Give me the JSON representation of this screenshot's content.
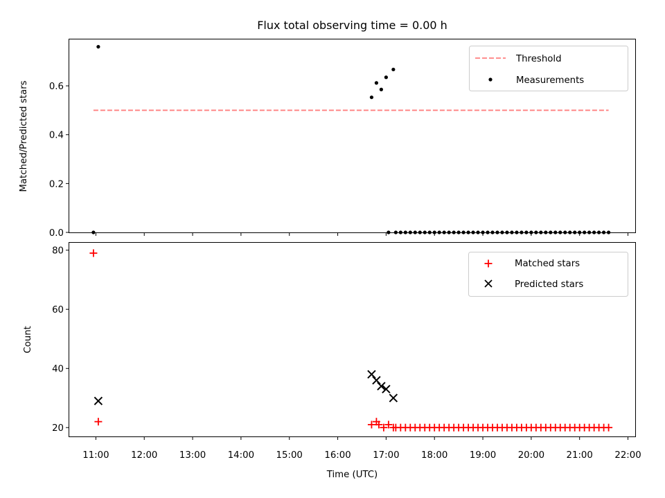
{
  "title": "Flux total observing time = 0.00 h",
  "chart_data": [
    {
      "type": "scatter",
      "ylabel": "Matched/Predicted stars",
      "xlabel": "",
      "x_unit": "hours (UTC)",
      "xlim": [
        10.45,
        22.15
      ],
      "ylim": [
        0,
        0.79
      ],
      "yticks": [
        {
          "value": 0.0,
          "label": "0.0"
        },
        {
          "value": 0.2,
          "label": "0.2"
        },
        {
          "value": 0.4,
          "label": "0.4"
        },
        {
          "value": 0.6,
          "label": "0.6"
        }
      ],
      "legend": {
        "position": "top-right",
        "entries": [
          "Threshold",
          "Measurements"
        ]
      },
      "threshold": {
        "name": "Threshold",
        "value": 0.5,
        "x_range": [
          10.95,
          21.6
        ],
        "color": "#ff7f7f"
      },
      "measurements": {
        "name": "Measurements",
        "color": "#000000",
        "x": [
          10.95,
          11.05,
          16.7,
          16.8,
          16.9,
          17.0,
          17.15,
          17.05,
          17.2,
          17.3,
          17.4,
          17.5,
          17.6,
          17.7,
          17.8,
          17.9,
          18.0,
          18.1,
          18.2,
          18.3,
          18.4,
          18.5,
          18.6,
          18.7,
          18.8,
          18.9,
          19.0,
          19.1,
          19.2,
          19.3,
          19.4,
          19.5,
          19.6,
          19.7,
          19.8,
          19.9,
          20.0,
          20.1,
          20.2,
          20.3,
          20.4,
          20.5,
          20.6,
          20.7,
          20.8,
          20.9,
          21.0,
          21.1,
          21.2,
          21.3,
          21.4,
          21.5,
          21.6
        ],
        "y": [
          0.0,
          0.76,
          0.553,
          0.612,
          0.585,
          0.635,
          0.667,
          0.0,
          0.0,
          0.0,
          0.0,
          0.0,
          0.0,
          0.0,
          0.0,
          0.0,
          0.0,
          0.0,
          0.0,
          0.0,
          0.0,
          0.0,
          0.0,
          0.0,
          0.0,
          0.0,
          0.0,
          0.0,
          0.0,
          0.0,
          0.0,
          0.0,
          0.0,
          0.0,
          0.0,
          0.0,
          0.0,
          0.0,
          0.0,
          0.0,
          0.0,
          0.0,
          0.0,
          0.0,
          0.0,
          0.0,
          0.0,
          0.0,
          0.0,
          0.0,
          0.0,
          0.0,
          0.0
        ]
      }
    },
    {
      "type": "scatter",
      "ylabel": "Count",
      "xlabel": "Time (UTC)",
      "x_unit": "hours (UTC)",
      "xlim": [
        10.45,
        22.15
      ],
      "ylim": [
        17,
        82.5
      ],
      "yticks": [
        {
          "value": 20,
          "label": "20"
        },
        {
          "value": 40,
          "label": "40"
        },
        {
          "value": 60,
          "label": "60"
        },
        {
          "value": 80,
          "label": "80"
        }
      ],
      "xticks": [
        {
          "value": 11,
          "label": "11:00"
        },
        {
          "value": 12,
          "label": "12:00"
        },
        {
          "value": 13,
          "label": "13:00"
        },
        {
          "value": 14,
          "label": "14:00"
        },
        {
          "value": 15,
          "label": "15:00"
        },
        {
          "value": 16,
          "label": "16:00"
        },
        {
          "value": 17,
          "label": "17:00"
        },
        {
          "value": 18,
          "label": "18:00"
        },
        {
          "value": 19,
          "label": "19:00"
        },
        {
          "value": 20,
          "label": "20:00"
        },
        {
          "value": 21,
          "label": "21:00"
        },
        {
          "value": 22,
          "label": "22:00"
        }
      ],
      "legend": {
        "position": "top-right",
        "entries": [
          "Matched stars",
          "Predicted stars"
        ]
      },
      "series": [
        {
          "name": "Matched stars",
          "marker": "plus",
          "color": "#ff0000",
          "x": [
            10.95,
            11.05,
            16.7,
            16.8,
            16.85,
            16.95,
            17.05,
            17.15,
            17.2,
            17.3,
            17.4,
            17.5,
            17.6,
            17.7,
            17.8,
            17.9,
            18.0,
            18.1,
            18.2,
            18.3,
            18.4,
            18.5,
            18.6,
            18.7,
            18.8,
            18.9,
            19.0,
            19.1,
            19.2,
            19.3,
            19.4,
            19.5,
            19.6,
            19.7,
            19.8,
            19.9,
            20.0,
            20.1,
            20.2,
            20.3,
            20.4,
            20.5,
            20.6,
            20.7,
            20.8,
            20.9,
            21.0,
            21.1,
            21.2,
            21.3,
            21.4,
            21.5,
            21.6
          ],
          "y": [
            79,
            22,
            21,
            22,
            21,
            20,
            21,
            20,
            20,
            20,
            20,
            20,
            20,
            20,
            20,
            20,
            20,
            20,
            20,
            20,
            20,
            20,
            20,
            20,
            20,
            20,
            20,
            20,
            20,
            20,
            20,
            20,
            20,
            20,
            20,
            20,
            20,
            20,
            20,
            20,
            20,
            20,
            20,
            20,
            20,
            20,
            20,
            20,
            20,
            20,
            20,
            20,
            20
          ]
        },
        {
          "name": "Predicted stars",
          "marker": "x",
          "color": "#000000",
          "x": [
            11.05,
            16.7,
            16.8,
            16.9,
            17.0,
            17.15
          ],
          "y": [
            29,
            38,
            36,
            34,
            33,
            30
          ]
        }
      ]
    }
  ]
}
